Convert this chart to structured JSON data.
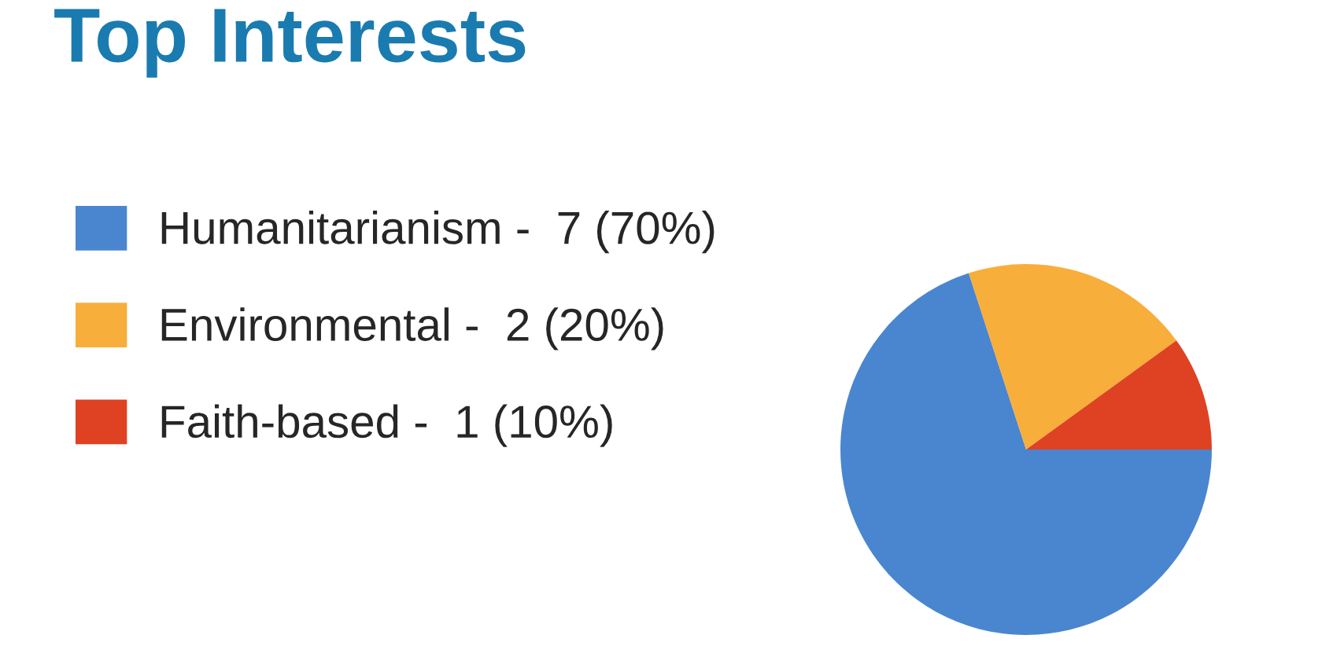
{
  "chart_data": {
    "type": "pie",
    "title": "Top Interests",
    "categories": [
      "Humanitarianism -  7 (70%)",
      "Environmental -  2 (20%)",
      "Faith-based -  1 (10%)"
    ],
    "values": [
      70,
      20,
      10
    ],
    "colors": [
      "#4a86cf",
      "#f8ae3a",
      "#de4223"
    ],
    "legend": "left"
  }
}
